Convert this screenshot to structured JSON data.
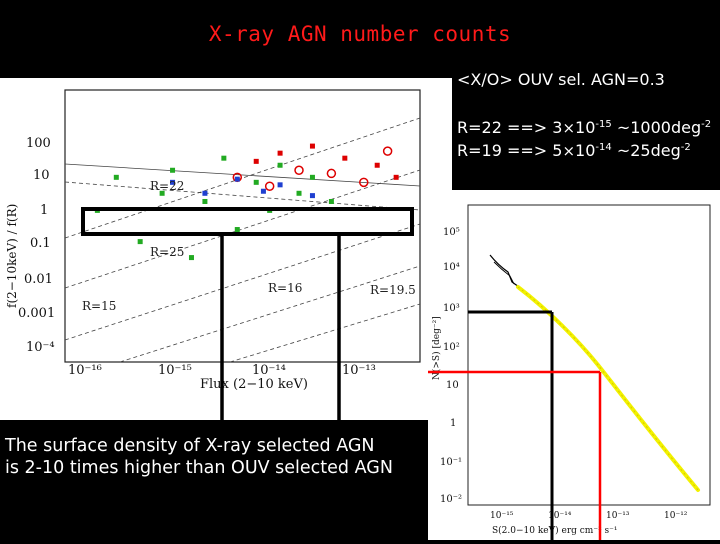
{
  "slide": {
    "title": "X-ray AGN number counts",
    "notes": {
      "ratio": "<X/O> OUV sel. AGN=0.3",
      "r22": {
        "lead": "R=22 ==> 3",
        "times": "×",
        "mant": "10",
        "exp": "-15",
        "tail": " ~1000deg",
        "unit_exp": "-2"
      },
      "r19": {
        "lead": "R=19 ==> 5",
        "times": "×",
        "mant": "10",
        "exp": "-14",
        "tail": " ~25deg",
        "unit_exp": "-2"
      }
    },
    "caption": {
      "line1": "The surface density of X-ray selected AGN",
      "line2": "is 2-10 times higher than OUV selected AGN"
    },
    "colors": {
      "title": "#ff1a1a",
      "highlight_box": "#000000",
      "red_line": "#ff0000",
      "yellow_curve": "#f2f200"
    }
  },
  "left_plot": {
    "ylabel": "f(2−10keV) / f(R)",
    "xlabel": "Flux (2−10 keV)",
    "yticks": [
      "100",
      "10",
      "1",
      "0.1",
      "0.01",
      "0.001",
      "10⁻⁴"
    ],
    "xticks": [
      "10⁻¹⁶",
      "10⁻¹⁵",
      "10⁻¹⁴",
      "10⁻¹³"
    ],
    "annotations": [
      "R=22",
      "R=15",
      "R=16",
      "R=19.5",
      "R=25"
    ],
    "chart_data": {
      "type": "scatter",
      "xscale": "log",
      "yscale": "log",
      "xlim": [
        1e-16,
        2e-13
      ],
      "ylim": [
        5e-05,
        300
      ],
      "series": [
        {
          "color": "#22aa22",
          "values": [
            [
              2e-16,
              0.3
            ],
            [
              3e-16,
              2
            ],
            [
              5e-16,
              0.05
            ],
            [
              8e-16,
              0.8
            ],
            [
              1e-15,
              3
            ],
            [
              1.5e-15,
              0.02
            ],
            [
              2e-15,
              0.5
            ],
            [
              3e-15,
              6
            ],
            [
              4e-15,
              0.1
            ],
            [
              6e-15,
              1.5
            ],
            [
              8e-15,
              0.3
            ],
            [
              1e-14,
              4
            ],
            [
              1.5e-14,
              0.8
            ],
            [
              2e-14,
              2
            ],
            [
              3e-14,
              0.5
            ]
          ]
        },
        {
          "color": "#dd0000",
          "values": [
            [
              4e-15,
              2
            ],
            [
              6e-15,
              5
            ],
            [
              8e-15,
              1.2
            ],
            [
              1e-14,
              8
            ],
            [
              1.5e-14,
              3
            ],
            [
              2e-14,
              12
            ],
            [
              3e-14,
              2.5
            ],
            [
              4e-14,
              6
            ],
            [
              6e-14,
              1.5
            ],
            [
              8e-14,
              4
            ],
            [
              1e-13,
              9
            ],
            [
              1.2e-13,
              2
            ]
          ]
        },
        {
          "color": "#1f3fd0",
          "values": [
            [
              1e-15,
              1.5
            ],
            [
              2e-15,
              0.8
            ],
            [
              4e-15,
              1.8
            ],
            [
              7e-15,
              0.9
            ],
            [
              1e-14,
              1.3
            ],
            [
              2e-14,
              0.7
            ]
          ]
        }
      ]
    }
  },
  "right_plot": {
    "ylabel": "N(>S) [deg⁻²]",
    "xlabel": "S(2.0−10 keV) erg cm⁻² s⁻¹",
    "yticks": [
      "10⁵",
      "10⁴",
      "10³",
      "10²",
      "10",
      "1",
      "10⁻¹",
      "10⁻²"
    ],
    "xticks": [
      "10⁻¹⁵",
      "10⁻¹⁴",
      "10⁻¹³",
      "10⁻¹²"
    ]
  }
}
